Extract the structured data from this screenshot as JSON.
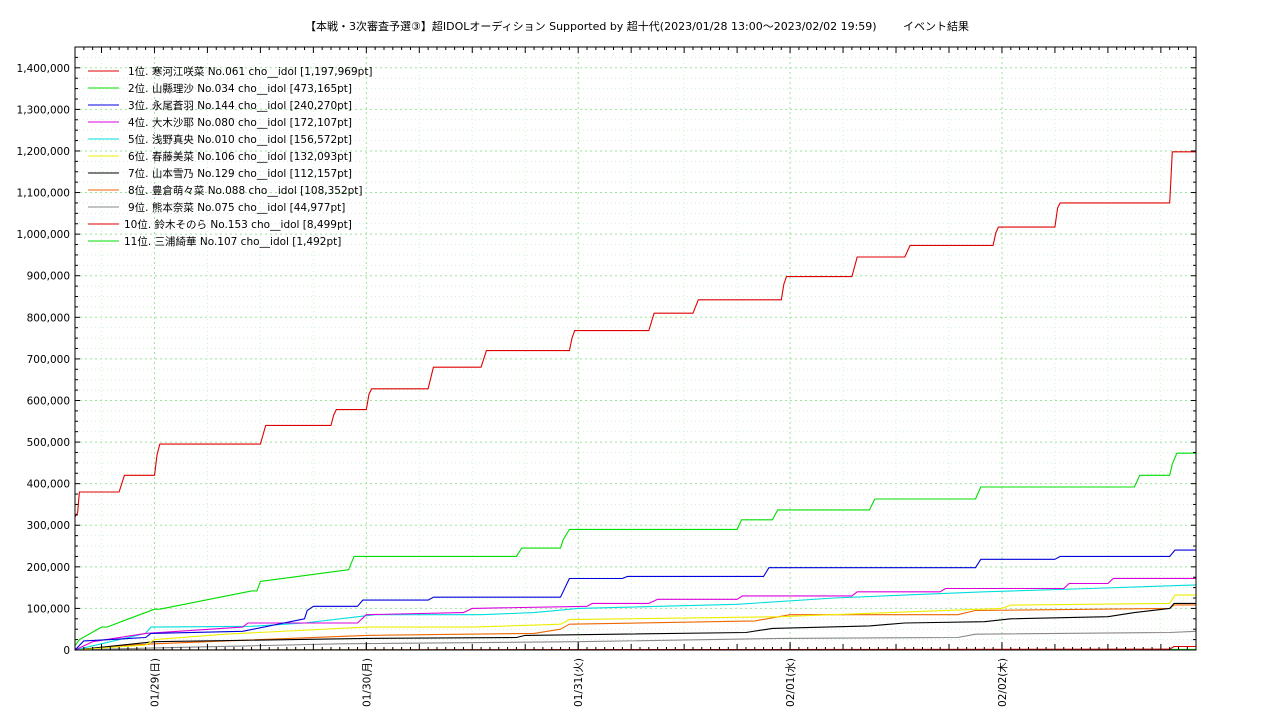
{
  "chart_data": {
    "type": "line",
    "title": "【本戦・3次審査予選③】超IDOLオーディション Supported by 超十代(2023/01/28 13:00～2023/02/02 19:59)",
    "subtitle": "イベント結果",
    "xlabel": "",
    "ylabel": "",
    "xlim": [
      0,
      126.98
    ],
    "ylim": [
      0,
      1450000
    ],
    "grid": true,
    "legend_position": "top-left",
    "y_ticks": [
      0,
      100000,
      200000,
      300000,
      400000,
      500000,
      600000,
      700000,
      800000,
      900000,
      1000000,
      1100000,
      1200000,
      1300000,
      1400000
    ],
    "y_tick_labels": [
      "0",
      "100,000",
      "200,000",
      "300,000",
      "400,000",
      "500,000",
      "600,000",
      "700,000",
      "800,000",
      "900,000",
      "1,000,000",
      "1,100,000",
      "1,200,000",
      "1,300,000",
      "1,400,000"
    ],
    "x_ticks": [
      9,
      33,
      57,
      81,
      105
    ],
    "x_tick_labels": [
      "01/29(日)",
      "01/30(月)",
      "01/31(火)",
      "02/01(水)",
      "02/02(木)"
    ],
    "series": [
      {
        "name": "1位. 寒河江咲菜 No.061 cho__idol [1,197,969pt]",
        "color": "#e00000",
        "x": [
          0,
          0.3,
          0.5,
          5,
          5.6,
          9,
          9.3,
          9.6,
          21,
          21.6,
          29,
          29.3,
          29.6,
          33,
          33.3,
          33.6,
          40,
          40.6,
          46,
          46.6,
          56,
          56.3,
          56.6,
          65,
          65.6,
          70,
          70.6,
          80,
          80.3,
          80.6,
          88,
          88.6,
          94,
          94.6,
          104,
          104.3,
          104.6,
          111,
          111.3,
          111.6,
          124,
          124.3,
          126.98
        ],
        "y": [
          320000,
          330000,
          380000,
          380000,
          420000,
          420000,
          470000,
          495000,
          495000,
          540000,
          540000,
          565000,
          578000,
          578000,
          615000,
          628000,
          628000,
          680000,
          680000,
          720000,
          720000,
          750000,
          768000,
          768000,
          810000,
          810000,
          842000,
          842000,
          880000,
          898000,
          898000,
          945000,
          945000,
          973000,
          973000,
          1003000,
          1017000,
          1017000,
          1063000,
          1075000,
          1075000,
          1197969,
          1197969
        ]
      },
      {
        "name": "2位. 山縣理沙 No.034 cho__idol [473,165pt]",
        "color": "#00dd00",
        "x": [
          0,
          0.5,
          3,
          3.6,
          9,
          9.6,
          20,
          20.6,
          21,
          31,
          31.6,
          50,
          50.6,
          55,
          55.3,
          56,
          75,
          75.5,
          79,
          79.6,
          90,
          90.6,
          102,
          102.6,
          120,
          120.6,
          124,
          124.3,
          124.8,
          126.98
        ],
        "y": [
          10000,
          25000,
          55000,
          55000,
          98000,
          98000,
          142000,
          142000,
          165000,
          193000,
          225000,
          225000,
          245000,
          245000,
          265000,
          290000,
          290000,
          313000,
          313000,
          337000,
          337000,
          363000,
          363000,
          392000,
          392000,
          420000,
          420000,
          447000,
          473165,
          473165
        ]
      },
      {
        "name": "3位. 永尾蒼羽 No.144 cho__idol [240,270pt]",
        "color": "#0000dd",
        "x": [
          0,
          1,
          4,
          8,
          8.6,
          19,
          26,
          26.3,
          27,
          32,
          32.6,
          40,
          40.6,
          55,
          56,
          62,
          62.6,
          78,
          78.6,
          102,
          102.6,
          111,
          111.6,
          124,
          124.6,
          126.98
        ],
        "y": [
          0,
          22000,
          25000,
          30000,
          40000,
          45000,
          75000,
          95000,
          105000,
          105000,
          120000,
          120000,
          127000,
          127000,
          172000,
          172000,
          177000,
          177000,
          198000,
          198000,
          218000,
          218000,
          225000,
          225000,
          240270,
          240270
        ]
      },
      {
        "name": "4位. 大木沙耶 No.080 cho__idol [172,107pt]",
        "color": "#dd00dd",
        "x": [
          0,
          2,
          8,
          19,
          19.6,
          32,
          33,
          44,
          45,
          58,
          58.6,
          65,
          66,
          75,
          75.6,
          88,
          88.6,
          98,
          98.6,
          112,
          112.6,
          117,
          117.6,
          126.98
        ],
        "y": [
          0,
          20000,
          40000,
          55000,
          65000,
          65000,
          85000,
          90000,
          100000,
          105000,
          112000,
          112000,
          122000,
          122000,
          130000,
          130000,
          140000,
          140000,
          148000,
          148000,
          160000,
          160000,
          172107,
          172107
        ]
      },
      {
        "name": "5位. 浅野真央 No.010 cho__idol [156,572pt]",
        "color": "#00dddd",
        "x": [
          0,
          4,
          8,
          8.6,
          20,
          26,
          34,
          46,
          52,
          57,
          75,
          86,
          103,
          115,
          126.98
        ],
        "y": [
          0,
          20000,
          40000,
          55000,
          57000,
          65000,
          85000,
          85000,
          90000,
          100000,
          110000,
          125000,
          140000,
          148000,
          156572
        ]
      },
      {
        "name": "6位. 春藤美菜 No.106 cho__idol [132,093pt]",
        "color": "#eeee00",
        "x": [
          0,
          8,
          9,
          17,
          33,
          45,
          55,
          56,
          80,
          82,
          105,
          106,
          124,
          124.6,
          126.98
        ],
        "y": [
          0,
          12000,
          25000,
          38000,
          55000,
          55000,
          62000,
          73000,
          80000,
          82000,
          100000,
          108000,
          112000,
          132093,
          132093
        ]
      },
      {
        "name": "7位. 山本雪乃 No.129 cho__idol [112,157pt]",
        "color": "#000000",
        "x": [
          0,
          9,
          33,
          50,
          51,
          76,
          79,
          90,
          94,
          103,
          106,
          117,
          120,
          124,
          124.5,
          126.98
        ],
        "y": [
          0,
          20000,
          28000,
          30000,
          35000,
          42000,
          52000,
          58000,
          65000,
          68000,
          75000,
          80000,
          90000,
          100000,
          112157,
          112157
        ]
      },
      {
        "name": "8位. 豊倉萌々菜 No.088 cho__idol [108,352pt]",
        "color": "#ee6600",
        "x": [
          0,
          5,
          9,
          33,
          52,
          55,
          56,
          77,
          81,
          100,
          102,
          124,
          124.5,
          126.98
        ],
        "y": [
          0,
          10000,
          15000,
          35000,
          40000,
          50000,
          62000,
          70000,
          85000,
          85000,
          95000,
          100000,
          108352,
          108352
        ]
      },
      {
        "name": "9位. 熊本奈菜 No.075 cho__idol [44,977pt]",
        "color": "#888888",
        "x": [
          0,
          9,
          20,
          30,
          57,
          80,
          100,
          102,
          124,
          126.98
        ],
        "y": [
          0,
          5000,
          10000,
          15000,
          20000,
          28000,
          30000,
          38000,
          42000,
          44977
        ]
      },
      {
        "name": "10位. 鈴木そのら No.153 cho__idol [8,499pt]",
        "color": "#e00000",
        "x": [
          0,
          124,
          124.5,
          126.98
        ],
        "y": [
          0,
          2000,
          8499,
          8499
        ]
      },
      {
        "name": "11位. 三浦綺華 No.107 cho__idol [1,492pt]",
        "color": "#00dd00",
        "x": [
          0,
          126.98
        ],
        "y": [
          0,
          1492
        ]
      }
    ]
  }
}
